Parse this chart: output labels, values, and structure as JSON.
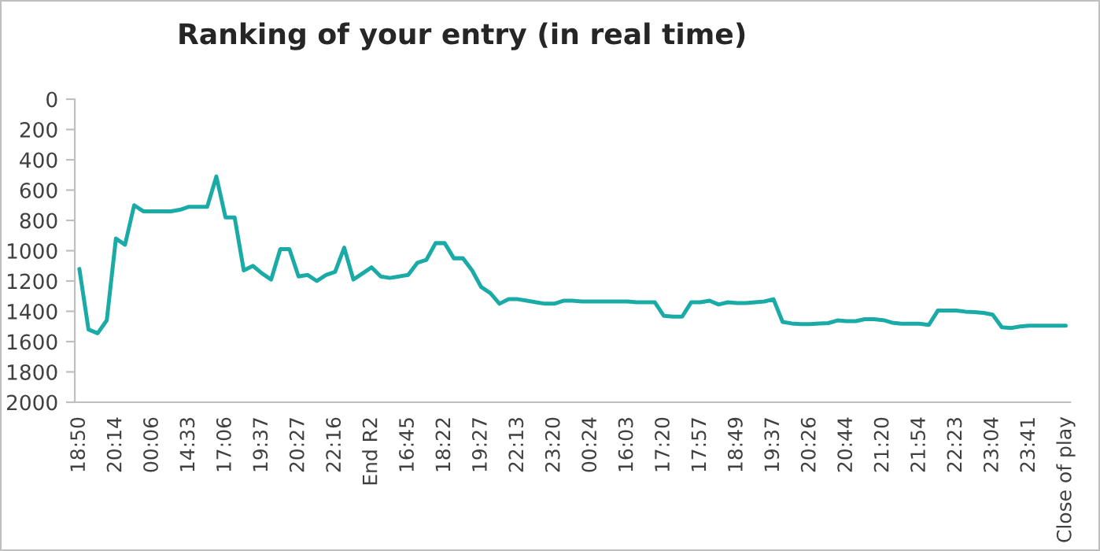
{
  "chart_data": {
    "type": "line",
    "title": "Ranking of your entry (in real time)",
    "categories": [
      "18:50",
      null,
      null,
      null,
      "20:14",
      null,
      null,
      null,
      "00:06",
      null,
      null,
      null,
      "14:33",
      null,
      null,
      null,
      "17:06",
      null,
      null,
      null,
      "19:37",
      null,
      null,
      null,
      "20:27",
      null,
      null,
      null,
      "22:16",
      null,
      null,
      null,
      "End R2",
      null,
      null,
      null,
      "16:45",
      null,
      null,
      null,
      "18:22",
      null,
      null,
      null,
      "19:27",
      null,
      null,
      null,
      "22:13",
      null,
      null,
      null,
      "23:20",
      null,
      null,
      null,
      "00:24",
      null,
      null,
      null,
      "16:03",
      null,
      null,
      null,
      "17:20",
      null,
      null,
      null,
      "17:57",
      null,
      null,
      null,
      "18:49",
      null,
      null,
      null,
      "19:37",
      null,
      null,
      null,
      "20:26",
      null,
      null,
      null,
      "20:44",
      null,
      null,
      null,
      "21:20",
      null,
      null,
      null,
      "21:54",
      null,
      null,
      null,
      "22:23",
      null,
      null,
      null,
      "23:04",
      null,
      null,
      null,
      "23:41",
      null,
      null,
      null,
      "Close of play"
    ],
    "series": [
      {
        "color": "#1aaba6",
        "values": [
          1120,
          1520,
          1545,
          1460,
          920,
          960,
          700,
          740,
          740,
          740,
          740,
          730,
          710,
          710,
          710,
          510,
          780,
          780,
          1130,
          1100,
          1150,
          1190,
          990,
          990,
          1170,
          1160,
          1200,
          1160,
          1140,
          980,
          1190,
          1150,
          1110,
          1170,
          1180,
          1170,
          1160,
          1080,
          1060,
          950,
          950,
          1050,
          1050,
          1130,
          1240,
          1280,
          1350,
          1320,
          1320,
          1330,
          1340,
          1350,
          1350,
          1330,
          1330,
          1335,
          1335,
          1335,
          1335,
          1335,
          1335,
          1340,
          1340,
          1340,
          1430,
          1435,
          1435,
          1340,
          1340,
          1330,
          1355,
          1340,
          1345,
          1345,
          1340,
          1335,
          1320,
          1470,
          1480,
          1485,
          1485,
          1480,
          1478,
          1460,
          1465,
          1465,
          1452,
          1452,
          1458,
          1475,
          1482,
          1482,
          1482,
          1490,
          1395,
          1395,
          1395,
          1402,
          1405,
          1410,
          1422,
          1505,
          1510,
          1500,
          1495,
          1495,
          1495,
          1495,
          1495
        ]
      }
    ],
    "ylim": [
      2000,
      0
    ],
    "yticks": [
      0,
      200,
      400,
      600,
      800,
      1000,
      1200,
      1400,
      1600,
      1800,
      2000
    ],
    "grid": false,
    "marker": "none",
    "line_style": "solid"
  }
}
